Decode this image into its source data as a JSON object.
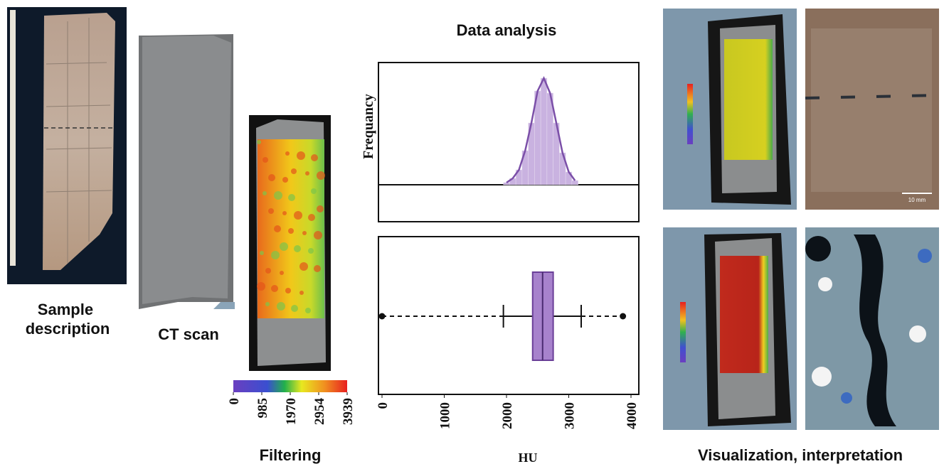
{
  "sample": {
    "label": [
      "Sample",
      "description"
    ]
  },
  "ct_scan": {
    "label": "CT scan"
  },
  "filtering": {
    "label": "Filtering",
    "colorbar": {
      "range": [
        0,
        3939
      ],
      "ticks": [
        0,
        985,
        1970,
        2954,
        3939
      ]
    }
  },
  "analysis": {
    "title": "Data analysis",
    "y_label": "Frequancy",
    "x_label": "HU",
    "xlim": [
      0,
      4000
    ],
    "xticks": [
      0,
      1000,
      2000,
      3000,
      4000
    ],
    "histogram": {
      "bins": [
        1950,
        2050,
        2150,
        2250,
        2350,
        2450,
        2550,
        2650,
        2750,
        2850,
        2950,
        3050,
        3150
      ],
      "counts": [
        2,
        6,
        14,
        32,
        58,
        88,
        100,
        86,
        58,
        30,
        12,
        4
      ]
    },
    "boxplot": {
      "whisker_low": 1950,
      "q1": 2420,
      "median": 2580,
      "q3": 2750,
      "whisker_high": 3200,
      "outliers": [
        0,
        3870
      ]
    }
  },
  "visualization": {
    "label": "Visualization, interpretation",
    "scale_bar": "10 mm"
  }
}
